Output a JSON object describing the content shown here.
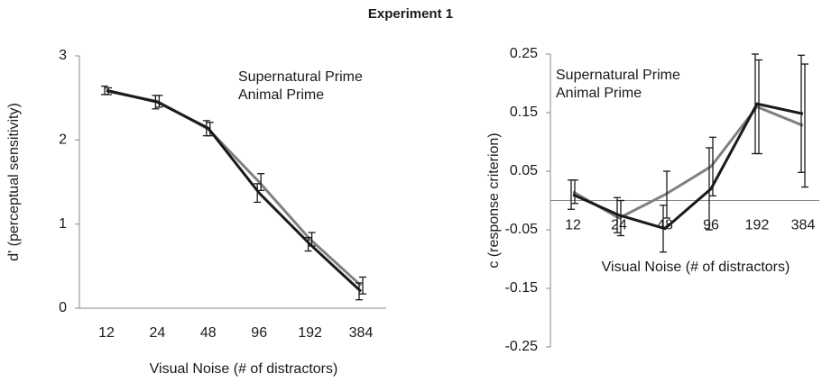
{
  "title": "Experiment 1",
  "chart_data": [
    {
      "type": "line",
      "ylabel": "d' (perceptual sensitivity)",
      "xlabel": "Visual Noise (# of distractors)",
      "categories": [
        "12",
        "24",
        "48",
        "96",
        "192",
        "384"
      ],
      "series": [
        {
          "name": "Supernatural Prime",
          "color": "#1a1a1a",
          "values": [
            2.59,
            2.45,
            2.14,
            1.37,
            0.76,
            0.2
          ],
          "errors": [
            0.05,
            0.08,
            0.09,
            0.11,
            0.08,
            0.1
          ]
        },
        {
          "name": "Animal Prime",
          "color": "#808080",
          "values": [
            2.58,
            2.46,
            2.13,
            1.5,
            0.82,
            0.27
          ],
          "errors": [
            0.04,
            0.07,
            0.08,
            0.1,
            0.08,
            0.1
          ]
        }
      ],
      "ylim": [
        0,
        3
      ],
      "yticks": [
        0,
        1,
        2,
        3
      ],
      "grid": false,
      "legend": "upper right"
    },
    {
      "type": "line",
      "ylabel": "c (response criterion)",
      "xlabel": "Visual Noise (# of distractors)",
      "categories": [
        "12",
        "24",
        "48",
        "96",
        "192",
        "384"
      ],
      "series": [
        {
          "name": "Supernatural Prime",
          "color": "#1a1a1a",
          "values": [
            0.01,
            -0.025,
            -0.048,
            0.02,
            0.165,
            0.148
          ],
          "errors": [
            0.025,
            0.03,
            0.04,
            0.07,
            0.085,
            0.1
          ]
        },
        {
          "name": "Animal Prime",
          "color": "#808080",
          "values": [
            0.015,
            -0.03,
            0.01,
            0.058,
            0.16,
            0.128
          ],
          "errors": [
            0.02,
            0.03,
            0.04,
            0.05,
            0.08,
            0.105
          ]
        }
      ],
      "ylim": [
        -0.25,
        0.25
      ],
      "yticks": [
        -0.25,
        -0.15,
        -0.05,
        0.05,
        0.15,
        0.25
      ],
      "grid": false,
      "legend": "upper left"
    }
  ]
}
